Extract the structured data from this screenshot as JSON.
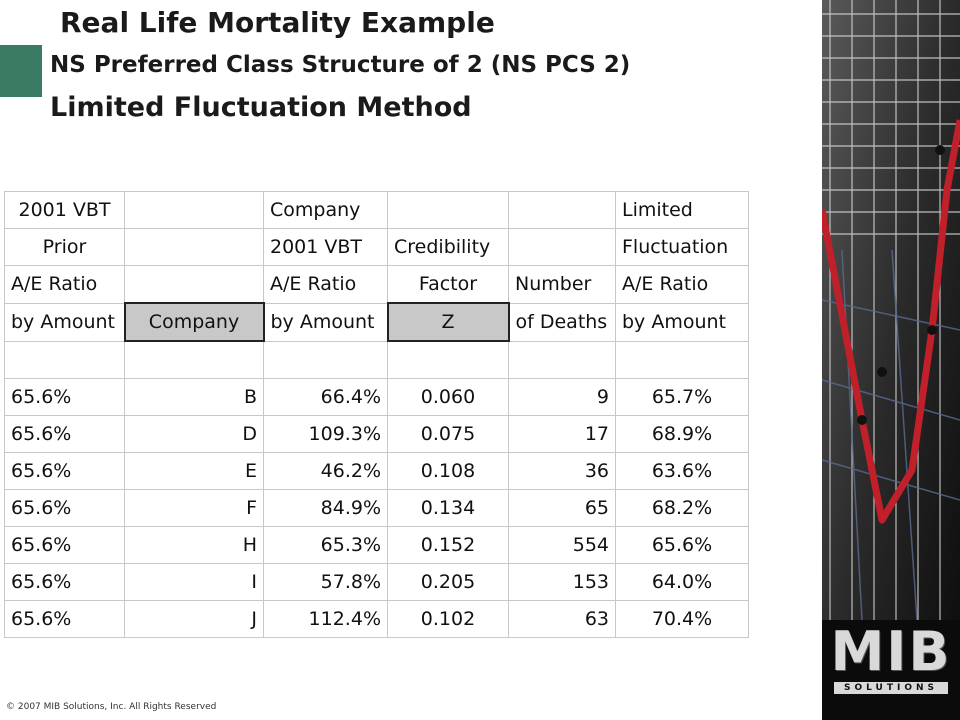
{
  "titles": {
    "line1": "Real Life Mortality Example",
    "line2": "NS Preferred Class Structure of 2 (NS PCS 2)",
    "line3": "Limited Fluctuation Method"
  },
  "table": {
    "header_row1": [
      "2001 VBT",
      "",
      "Company",
      "",
      "",
      "Limited"
    ],
    "header_row2": [
      "Prior",
      "",
      "2001 VBT",
      "Credibility",
      "",
      "Fluctuation"
    ],
    "header_row3": [
      "A/E Ratio",
      "",
      "A/E Ratio",
      "Factor",
      "Number",
      "A/E Ratio"
    ],
    "header_row4": [
      "by Amount",
      "Company",
      "by Amount",
      "Z",
      "of Deaths",
      "by Amount"
    ],
    "rows": [
      [
        "65.6%",
        "B",
        "66.4%",
        "0.060",
        "9",
        "65.7%"
      ],
      [
        "65.6%",
        "D",
        "109.3%",
        "0.075",
        "17",
        "68.9%"
      ],
      [
        "65.6%",
        "E",
        "46.2%",
        "0.108",
        "36",
        "63.6%"
      ],
      [
        "65.6%",
        "F",
        "84.9%",
        "0.134",
        "65",
        "68.2%"
      ],
      [
        "65.6%",
        "H",
        "65.3%",
        "0.152",
        "554",
        "65.6%"
      ],
      [
        "65.6%",
        "I",
        "57.8%",
        "0.205",
        "153",
        "64.0%"
      ],
      [
        "65.6%",
        "J",
        "112.4%",
        "0.102",
        "63",
        "70.4%"
      ]
    ]
  },
  "logo": {
    "main": "MIB",
    "sub": "SOLUTIONS"
  },
  "footer": "© 2007 MIB Solutions, Inc. All Rights Reserved",
  "colors": {
    "accent": "#3b7a63",
    "highlight_cell": "#c8c8c8",
    "chart_line": "#c0202a"
  }
}
